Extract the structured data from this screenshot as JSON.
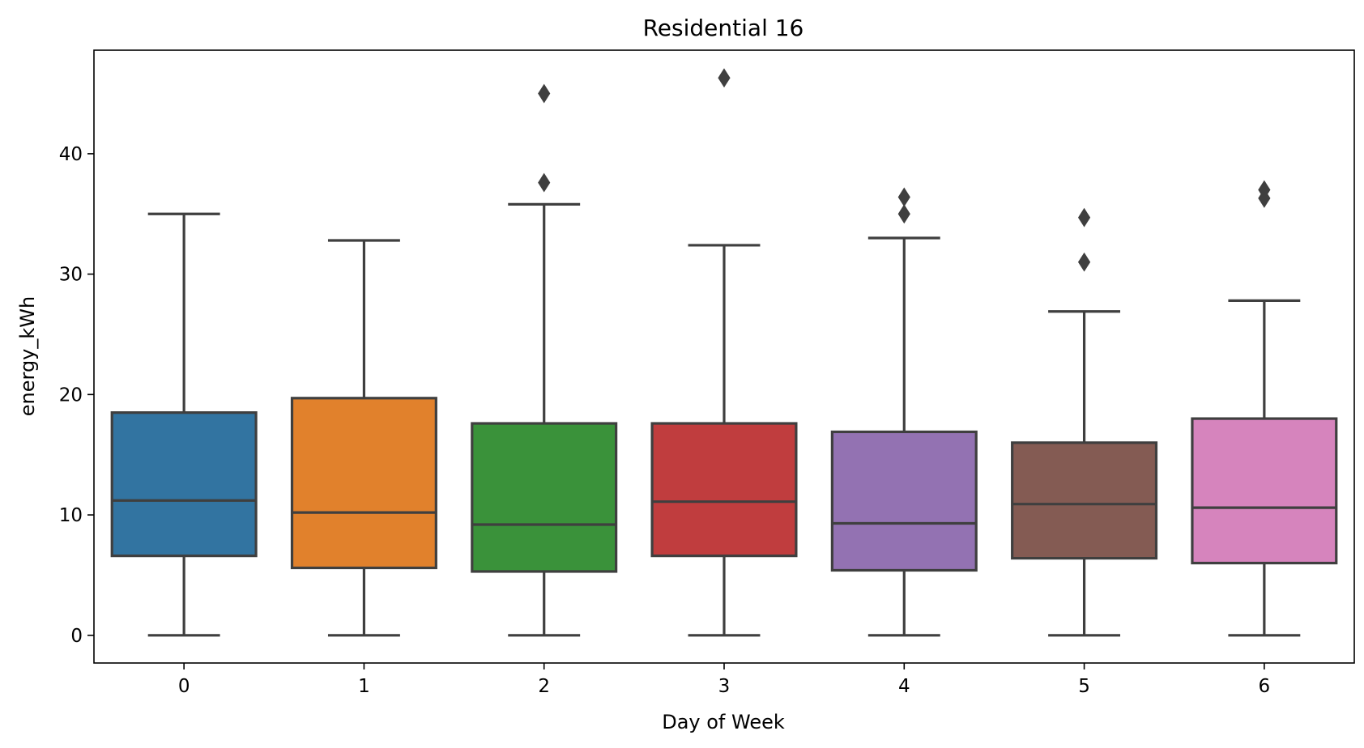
{
  "chart_data": {
    "type": "box",
    "title": "Residential 16",
    "xlabel": "Day of Week",
    "ylabel": "energy_kWh",
    "categories": [
      "0",
      "1",
      "2",
      "3",
      "4",
      "5",
      "6"
    ],
    "yticks": [
      0,
      10,
      20,
      30,
      40
    ],
    "ytick_labels": [
      "0",
      "10",
      "20",
      "30",
      "40"
    ],
    "ylim": [
      -2.3,
      48.6
    ],
    "grid": false,
    "legend": "none",
    "boxes": [
      {
        "category": "0",
        "color": "#3274a1",
        "whisker_low": 0,
        "q1": 6.6,
        "median": 11.2,
        "q3": 18.5,
        "whisker_high": 35.0,
        "outliers": []
      },
      {
        "category": "1",
        "color": "#e1812c",
        "whisker_low": 0,
        "q1": 5.6,
        "median": 10.2,
        "q3": 19.7,
        "whisker_high": 32.8,
        "outliers": []
      },
      {
        "category": "2",
        "color": "#3a923a",
        "whisker_low": 0,
        "q1": 5.3,
        "median": 9.2,
        "q3": 17.6,
        "whisker_high": 35.8,
        "outliers": [
          37.6,
          45.0
        ]
      },
      {
        "category": "3",
        "color": "#c03d3e",
        "whisker_low": 0,
        "q1": 6.6,
        "median": 11.1,
        "q3": 17.6,
        "whisker_high": 32.4,
        "outliers": [
          46.3
        ]
      },
      {
        "category": "4",
        "color": "#9372b2",
        "whisker_low": 0,
        "q1": 5.4,
        "median": 9.3,
        "q3": 16.9,
        "whisker_high": 33.0,
        "outliers": [
          35.0,
          36.4
        ]
      },
      {
        "category": "5",
        "color": "#845b53",
        "whisker_low": 0,
        "q1": 6.4,
        "median": 10.9,
        "q3": 16.0,
        "whisker_high": 26.9,
        "outliers": [
          31.0,
          34.7
        ]
      },
      {
        "category": "6",
        "color": "#d684bd",
        "whisker_low": 0,
        "q1": 6.0,
        "median": 10.6,
        "q3": 18.0,
        "whisker_high": 27.8,
        "outliers": [
          36.3,
          37.0
        ]
      }
    ]
  }
}
